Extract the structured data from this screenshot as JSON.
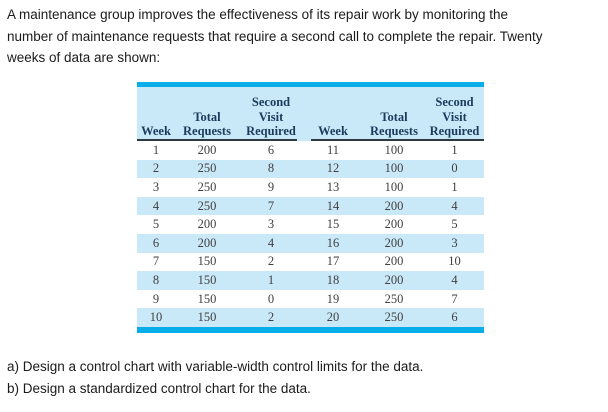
{
  "intro_lines": [
    "A maintenance group improves the effectiveness of its repair work by monitoring the",
    "number of maintenance requests that require a second call to complete the repair. Twenty",
    "weeks of data are shown:"
  ],
  "table": {
    "columns": [
      "Week",
      "Total\nRequests",
      "Second\nVisit\nRequired",
      "Week",
      "Total\nRequests",
      "Second\nVisit\nRequired"
    ],
    "rows": [
      [
        "1",
        "200",
        "6",
        "11",
        "100",
        "1"
      ],
      [
        "2",
        "250",
        "8",
        "12",
        "100",
        "0"
      ],
      [
        "3",
        "250",
        "9",
        "13",
        "100",
        "1"
      ],
      [
        "4",
        "250",
        "7",
        "14",
        "200",
        "4"
      ],
      [
        "5",
        "200",
        "3",
        "15",
        "200",
        "5"
      ],
      [
        "6",
        "200",
        "4",
        "16",
        "200",
        "3"
      ],
      [
        "7",
        "150",
        "2",
        "17",
        "200",
        "10"
      ],
      [
        "8",
        "150",
        "1",
        "18",
        "200",
        "4"
      ],
      [
        "9",
        "150",
        "0",
        "19",
        "250",
        "7"
      ],
      [
        "10",
        "150",
        "2",
        "20",
        "250",
        "6"
      ]
    ]
  },
  "questions": [
    "a) Design a control chart with variable-width control limits for the data.",
    "b) Design a standardized control chart for the data."
  ],
  "colors": {
    "accent_bar": "#09ade8",
    "row_stripe": "#cae9f8",
    "header_text": "#1a3b5d",
    "body_text": "#3f3f3f"
  }
}
